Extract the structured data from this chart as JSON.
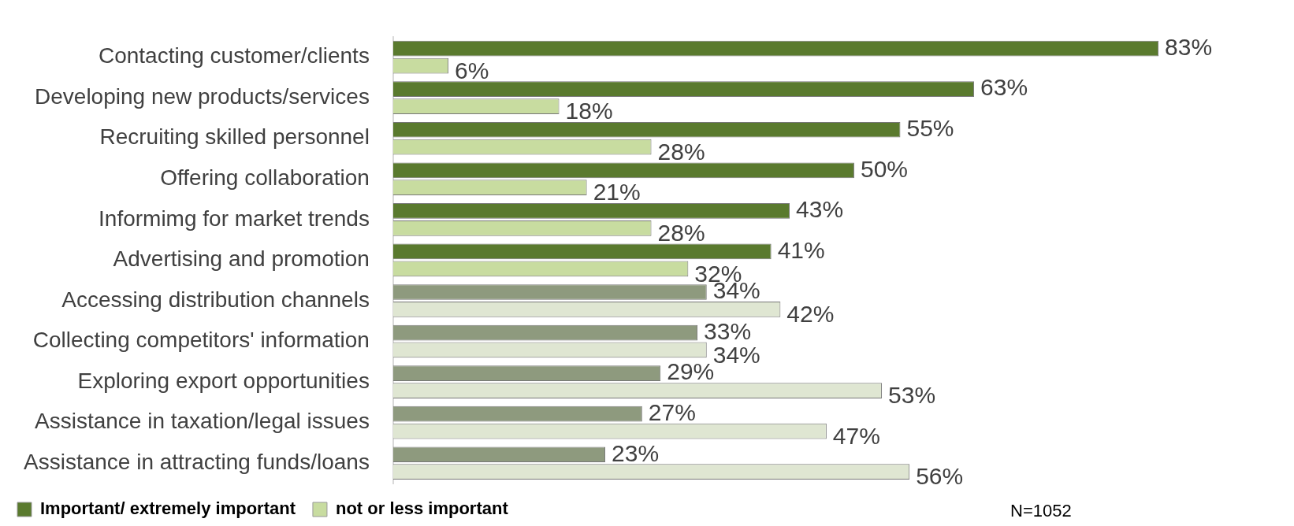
{
  "chart_data": {
    "type": "bar",
    "orientation": "horizontal",
    "grid": false,
    "legend": "bottom",
    "categories": [
      "Contacting customer/clients",
      "Developing new products/services",
      "Recruiting skilled personnel",
      "Offering collaboration",
      "Informimg for market trends",
      "Advertising and promotion",
      "Accessing distribution channels",
      "Collecting competitors' information",
      "Exploring export opportunities",
      "Assistance in taxation/legal issues",
      "Assistance in attracting funds/loans"
    ],
    "series": [
      {
        "name": "Important/ extremely important",
        "color": "#5a7a2e",
        "colors": [
          "#5a7a2e",
          "#5a7a2e",
          "#5a7a2e",
          "#5a7a2e",
          "#5a7a2e",
          "#5a7a2e",
          "#8e9a7e",
          "#8e9a7e",
          "#8e9a7e",
          "#8e9a7e",
          "#8e9a7e"
        ],
        "values": [
          83,
          63,
          55,
          50,
          43,
          41,
          34,
          33,
          29,
          27,
          23
        ],
        "value_labels": [
          "83%",
          "63%",
          "55%",
          "50%",
          "43%",
          "41%",
          "34%",
          "33%",
          "29%",
          "27%",
          "23%"
        ]
      },
      {
        "name": "not or less important",
        "color": "#c8dca0",
        "colors": [
          "#c8dca0",
          "#c8dca0",
          "#c8dca0",
          "#c8dca0",
          "#c8dca0",
          "#c8dca0",
          "#dfe6d2",
          "#dfe6d2",
          "#dfe6d2",
          "#dfe6d2",
          "#dfe6d2"
        ],
        "values": [
          6,
          18,
          28,
          21,
          28,
          32,
          42,
          34,
          53,
          47,
          56
        ],
        "value_labels": [
          "6%",
          "18%",
          "28%",
          "21%",
          "28%",
          "32%",
          "42%",
          "34%",
          "53%",
          "47%",
          "56%"
        ]
      }
    ],
    "annotations": [
      "N=1052"
    ]
  }
}
